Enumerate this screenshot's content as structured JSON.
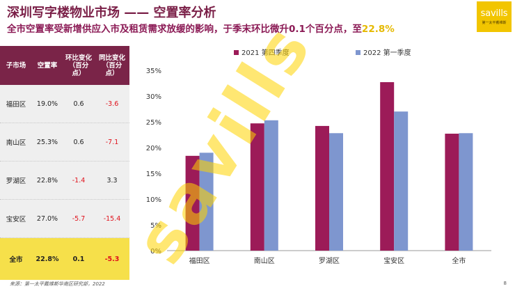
{
  "header": {
    "title": "深圳写字楼物业市场 —— 空置率分析",
    "subtitle_main": "全市空置率受新增供应入市及租赁需求放缓的影响，于季末环比微升0.1个百分点，至",
    "subtitle_highlight": "22.8%"
  },
  "logo": {
    "word": "savills",
    "tagline": "第一太平戴维斯"
  },
  "watermark": "savills",
  "table": {
    "headers": [
      "子市场",
      "空置率",
      "环比变化（百分点）",
      "同比变化（百分点）"
    ],
    "header_lines": [
      [
        "子市场"
      ],
      [
        "空置率"
      ],
      [
        "环比变化",
        "（百分",
        "点）"
      ],
      [
        "同比变化",
        "（百分",
        "点）"
      ]
    ],
    "rows": [
      {
        "market": "福田区",
        "rate": "19.0%",
        "qoq": "0.6",
        "yoy": "-3.6"
      },
      {
        "market": "南山区",
        "rate": "25.3%",
        "qoq": "0.6",
        "yoy": "-7.1"
      },
      {
        "market": "罗湖区",
        "rate": "22.8%",
        "qoq": "-1.4",
        "yoy": "3.3"
      },
      {
        "market": "宝安区",
        "rate": "27.0%",
        "qoq": "-5.7",
        "yoy": "-15.4"
      },
      {
        "market": "全市",
        "rate": "22.8%",
        "qoq": "0.1",
        "yoy": "-5.3"
      }
    ]
  },
  "colors": {
    "series1": "#9c1b58",
    "series2": "#7e96cf",
    "accent": "#f2c500"
  },
  "chart_data": {
    "type": "bar",
    "categories": [
      "福田区",
      "南山区",
      "罗湖区",
      "宝安区",
      "全市"
    ],
    "series": [
      {
        "name": "2021 第四季度",
        "values": [
          18.4,
          24.7,
          24.2,
          32.7,
          22.7
        ]
      },
      {
        "name": "2022 第一季度",
        "values": [
          19.0,
          25.3,
          22.8,
          27.0,
          22.8
        ]
      }
    ],
    "ylim": [
      0,
      35
    ],
    "yticks": [
      0,
      5,
      10,
      15,
      20,
      25,
      30,
      35
    ],
    "ytick_format": "percent",
    "legend": "top",
    "grid": false
  },
  "footer": {
    "source": "来源：第一太平戴维斯华南区研究部，2022",
    "page": "8"
  }
}
